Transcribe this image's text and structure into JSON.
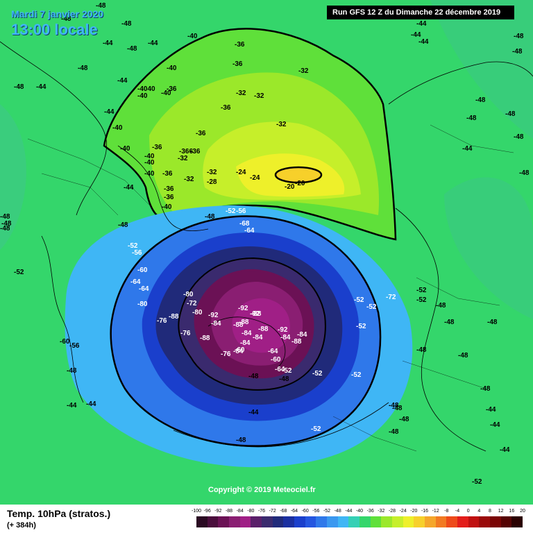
{
  "header": {
    "date_line": "Mardi 7 janvier 2020",
    "time_line": "13:00 locale",
    "run_info": "Run GFS 12 Z du Dimanche 22 décembre 2019"
  },
  "copyright": "Copyright © 2019 Meteociel.fr",
  "footer": {
    "title": "Temp. 10hPa (stratos.)",
    "subtitle": "(+ 384h)"
  },
  "legend": {
    "ticks": [
      "-100",
      "-96",
      "-92",
      "-88",
      "-84",
      "-80",
      "-76",
      "-72",
      "-68",
      "-64",
      "-60",
      "-56",
      "-52",
      "-48",
      "-44",
      "-40",
      "-36",
      "-32",
      "-28",
      "-24",
      "-20",
      "-16",
      "-12",
      "-8",
      "-4",
      "0",
      "4",
      "8",
      "12",
      "16",
      "20"
    ],
    "colors": [
      "#2a0a22",
      "#4a0d3c",
      "#6b1155",
      "#8a1e72",
      "#a01f86",
      "#5a1f6a",
      "#3a2a6e",
      "#202a7a",
      "#1a2fa0",
      "#1a3fcc",
      "#2456e0",
      "#2f78ea",
      "#3a98f0",
      "#3fb6f5",
      "#35d0b5",
      "#34d66b",
      "#5fe03a",
      "#9be82a",
      "#c6ef2a",
      "#eef02a",
      "#f7d02a",
      "#f5a62a",
      "#f27a22",
      "#ee4a1a",
      "#e31d1a",
      "#c01010",
      "#9a0a0a",
      "#7a0505",
      "#550303",
      "#2a0000"
    ]
  },
  "map": {
    "colors": {
      "background": "#34d66b",
      "warm_outer": "#5fe03a",
      "warm_mid": "#9be82a",
      "warm_inner": "#c6ef2a",
      "warm_core": "#eef02a",
      "warm_peak": "#f7d02a",
      "cold_1": "#3fb6f5",
      "cold_2": "#2f78ea",
      "cold_3": "#1a3fcc",
      "cold_4": "#202a7a",
      "cold_5": "#3a2a6e",
      "cold_6": "#6b1155",
      "cold_7": "#8a1e72",
      "cold_8": "#a01f86"
    },
    "labels": [
      "-48",
      "-48",
      "-48",
      "-44",
      "-48",
      "-48",
      "-44",
      "-44",
      "-40",
      "-40",
      "-44",
      "-48",
      "-44",
      "-40",
      "-4040",
      "-40",
      "-36",
      "-36",
      "-36",
      "-32",
      "-32",
      "-32",
      "-36",
      "-32",
      "-36",
      "-48",
      "-48",
      "-48",
      "-48",
      "-44",
      "-40",
      "-44",
      "-40",
      "-40",
      "-40",
      "-40",
      "-36",
      "-366",
      "-36",
      "-36",
      "-32",
      "-32",
      "-32",
      "-28",
      "-24",
      "-20",
      "-20",
      "-24",
      "-48",
      "-48",
      "-44",
      "-44",
      "-44",
      "-48",
      "-36",
      "-36",
      "-40",
      "-52",
      "-56",
      "-68",
      "-64",
      "-48",
      "-48",
      "-48",
      "-48",
      "-48",
      "-52",
      "-56",
      "-60",
      "-64",
      "-64",
      "-80",
      "-80",
      "-72",
      "-76",
      "-88",
      "-92",
      "-92",
      "-92",
      "-88",
      "-88",
      "-88",
      "-84",
      "-84",
      "-80",
      "-76",
      "-88",
      "-88",
      "-92",
      "-84",
      "-84",
      "-84",
      "-84",
      "-88",
      "-84",
      "-76",
      "-60",
      "-64",
      "-60",
      "-64",
      "-52",
      "-48",
      "-48",
      "-52",
      "-52",
      "-52",
      "-52",
      "-52",
      "-72",
      "-60",
      "-56",
      "-48",
      "-44",
      "-44",
      "-44",
      "-48",
      "-52",
      "-52",
      "-52",
      "-48",
      "-48",
      "-48",
      "-48",
      "-48",
      "-48",
      "-48",
      "-48",
      "-48",
      "-48",
      "-44",
      "-44",
      "-44",
      "-52",
      "-52"
    ]
  }
}
